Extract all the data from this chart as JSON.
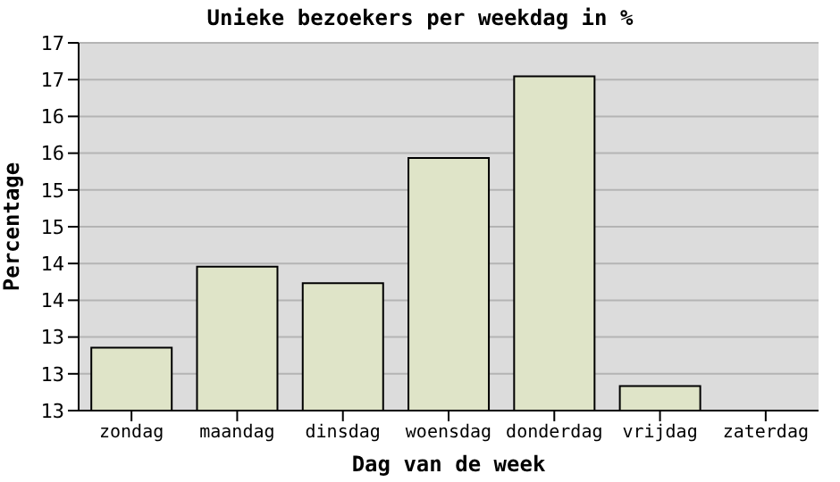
{
  "chart_data": {
    "type": "bar",
    "title": "Unieke bezoekers per weekdag in %",
    "xlabel": "Dag van de week",
    "ylabel": "Percentage",
    "categories": [
      "zondag",
      "maandag",
      "dinsdag",
      "woensdag",
      "donderdag",
      "vrijdag",
      "zaterdag"
    ],
    "values": [
      13.37,
      14.36,
      14.16,
      15.69,
      16.69,
      12.9,
      12.6
    ],
    "color": "#dfe4c8",
    "ylim": [
      12.6,
      17.1
    ],
    "yticks": [
      {
        "value": 12.6,
        "label": "13"
      },
      {
        "value": 13.05,
        "label": "13"
      },
      {
        "value": 13.5,
        "label": "13"
      },
      {
        "value": 13.95,
        "label": "14"
      },
      {
        "value": 14.4,
        "label": "14"
      },
      {
        "value": 14.85,
        "label": "15"
      },
      {
        "value": 15.3,
        "label": "15"
      },
      {
        "value": 15.75,
        "label": "16"
      },
      {
        "value": 16.2,
        "label": "16"
      },
      {
        "value": 16.65,
        "label": "17"
      },
      {
        "value": 17.1,
        "label": "17"
      }
    ],
    "grid": "y"
  }
}
